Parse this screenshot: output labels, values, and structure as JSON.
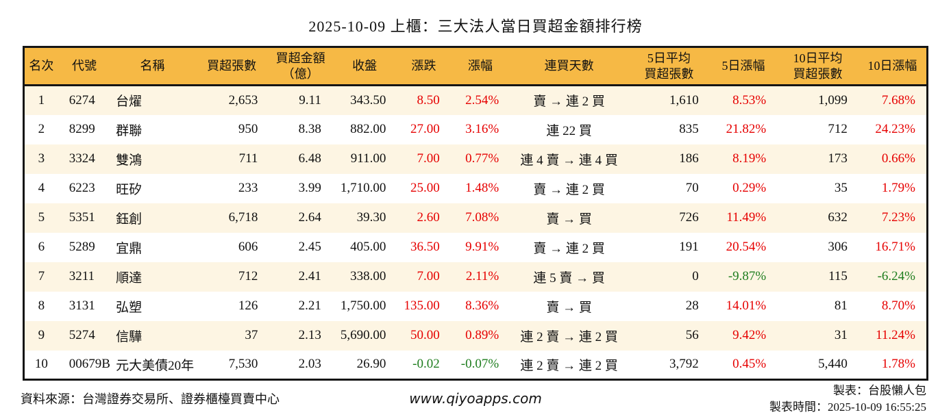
{
  "chart_data": {
    "type": "table",
    "title": "2025-10-09 上櫃：三大法人當日買超金額排行榜",
    "columns": [
      [
        "名次"
      ],
      [
        "代號"
      ],
      [
        "名稱"
      ],
      [
        "買超張數"
      ],
      [
        "買超金額",
        "（億）"
      ],
      [
        "收盤"
      ],
      [
        "漲跌"
      ],
      [
        "漲幅"
      ],
      [
        "連買天數"
      ],
      [
        "5日平均",
        "買超張數"
      ],
      [
        "5日漲幅"
      ],
      [
        "10日平均",
        "買超張數"
      ],
      [
        "10日漲幅"
      ]
    ],
    "rows": [
      {
        "rank": "1",
        "code": "6274",
        "name": "台燿",
        "shares": "2,653",
        "amount": "9.11",
        "close": "343.50",
        "change": "8.50",
        "change_pct": "2.54%",
        "streak": "賣 → 連 2 買",
        "avg5": "1,610",
        "pct5": "8.53%",
        "avg10": "1,099",
        "pct10": "7.68%"
      },
      {
        "rank": "2",
        "code": "8299",
        "name": "群聯",
        "shares": "950",
        "amount": "8.38",
        "close": "882.00",
        "change": "27.00",
        "change_pct": "3.16%",
        "streak": "連 22 買",
        "avg5": "835",
        "pct5": "21.82%",
        "avg10": "712",
        "pct10": "24.23%"
      },
      {
        "rank": "3",
        "code": "3324",
        "name": "雙鴻",
        "shares": "711",
        "amount": "6.48",
        "close": "911.00",
        "change": "7.00",
        "change_pct": "0.77%",
        "streak": "連 4 賣 → 連 4 買",
        "avg5": "186",
        "pct5": "8.19%",
        "avg10": "173",
        "pct10": "0.66%"
      },
      {
        "rank": "4",
        "code": "6223",
        "name": "旺矽",
        "shares": "233",
        "amount": "3.99",
        "close": "1,710.00",
        "change": "25.00",
        "change_pct": "1.48%",
        "streak": "賣 → 連 2 買",
        "avg5": "70",
        "pct5": "0.29%",
        "avg10": "35",
        "pct10": "1.79%"
      },
      {
        "rank": "5",
        "code": "5351",
        "name": "鈺創",
        "shares": "6,718",
        "amount": "2.64",
        "close": "39.30",
        "change": "2.60",
        "change_pct": "7.08%",
        "streak": "賣 → 買",
        "avg5": "726",
        "pct5": "11.49%",
        "avg10": "632",
        "pct10": "7.23%"
      },
      {
        "rank": "6",
        "code": "5289",
        "name": "宜鼎",
        "shares": "606",
        "amount": "2.45",
        "close": "405.00",
        "change": "36.50",
        "change_pct": "9.91%",
        "streak": "賣 → 連 2 買",
        "avg5": "191",
        "pct5": "20.54%",
        "avg10": "306",
        "pct10": "16.71%"
      },
      {
        "rank": "7",
        "code": "3211",
        "name": "順達",
        "shares": "712",
        "amount": "2.41",
        "close": "338.00",
        "change": "7.00",
        "change_pct": "2.11%",
        "streak": "連 5 賣 → 買",
        "avg5": "0",
        "pct5": "-9.87%",
        "avg10": "115",
        "pct10": "-6.24%"
      },
      {
        "rank": "8",
        "code": "3131",
        "name": "弘塑",
        "shares": "126",
        "amount": "2.21",
        "close": "1,750.00",
        "change": "135.00",
        "change_pct": "8.36%",
        "streak": "賣 → 買",
        "avg5": "28",
        "pct5": "14.01%",
        "avg10": "81",
        "pct10": "8.70%"
      },
      {
        "rank": "9",
        "code": "5274",
        "name": "信驊",
        "shares": "37",
        "amount": "2.13",
        "close": "5,690.00",
        "change": "50.00",
        "change_pct": "0.89%",
        "streak": "連 2 賣 → 連 2 買",
        "avg5": "56",
        "pct5": "9.42%",
        "avg10": "31",
        "pct10": "11.24%"
      },
      {
        "rank": "10",
        "code": "00679B",
        "name": "元大美債20年",
        "shares": "7,530",
        "amount": "2.03",
        "close": "26.90",
        "change": "-0.02",
        "change_pct": "-0.07%",
        "streak": "連 2 賣 → 連 2 買",
        "avg5": "3,792",
        "pct5": "0.45%",
        "avg10": "5,440",
        "pct10": "1.78%"
      }
    ]
  },
  "footer": {
    "source": "資料來源：台灣證券交易所、證券櫃檯買賣中心",
    "website": "www.qiyoapps.com",
    "maker": "製表：台股懶人包",
    "made_at": "製表時間：2025-10-09 16:55:25"
  },
  "colors": {
    "header_bg": "#F6B945",
    "row_alt_bg": "#FDF5E3",
    "up_red": "#E60000",
    "down_green": "#1E7D1E",
    "border": "#151515"
  }
}
